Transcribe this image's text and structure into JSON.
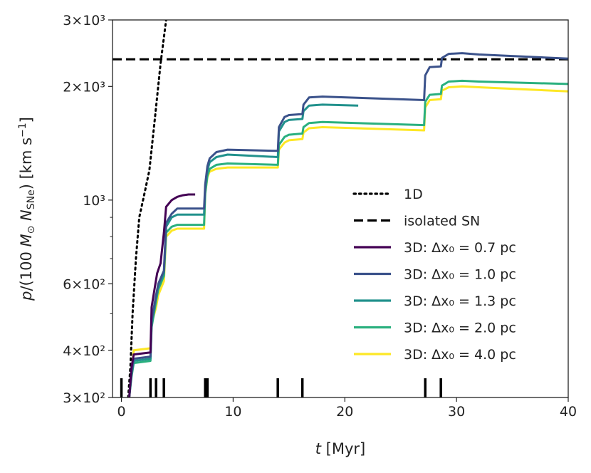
{
  "chart_data": {
    "type": "line",
    "xlabel": "t [Myr]",
    "ylabel": "p/(100 M⊙ N_SNe) [km s⁻¹]",
    "xlim": [
      -0.8,
      40
    ],
    "ylim": [
      300,
      3000
    ],
    "yscale": "log",
    "xticks": [
      0,
      10,
      20,
      30,
      40
    ],
    "xtick_labels": [
      "0",
      "10",
      "20",
      "30",
      "40"
    ],
    "yticks": [
      300,
      400,
      600,
      1000,
      2000,
      3000
    ],
    "ytick_labels": [
      "3×10²",
      "4×10²",
      "6×10²",
      "10³",
      "2×10³",
      "3×10³"
    ],
    "sn_times": [
      0.0,
      2.6,
      3.1,
      3.8,
      7.5,
      7.7,
      14.0,
      16.2,
      27.2,
      28.6
    ],
    "reference_lines": [
      {
        "name": "1D",
        "style": "dotted",
        "color": "#000000",
        "x": [
          0.6,
          0.8,
          1.0,
          1.3,
          1.6,
          2.0,
          2.5,
          3.0,
          3.5,
          4.0
        ],
        "y": [
          300,
          360,
          500,
          700,
          900,
          1020,
          1200,
          1650,
          2300,
          3000
        ]
      },
      {
        "name": "isolated SN",
        "style": "dashed",
        "color": "#000000",
        "x": [
          -0.8,
          40
        ],
        "y": [
          2360,
          2360
        ]
      }
    ],
    "series": [
      {
        "name": "0.7 pc",
        "label": "3D: Δx₀ = 0.7 pc",
        "color": "#440154",
        "x": [
          0.7,
          0.9,
          1.1,
          2.6,
          2.7,
          3.0,
          3.2,
          3.5,
          3.8,
          4.0,
          4.5,
          5.0,
          5.5,
          6.0,
          6.6
        ],
        "y": [
          300,
          360,
          390,
          395,
          520,
          590,
          640,
          680,
          820,
          960,
          1000,
          1020,
          1030,
          1035,
          1035
        ]
      },
      {
        "name": "1.0 pc",
        "label": "3D: Δx₀ = 1.0 pc",
        "color": "#3b528b",
        "x": [
          0.7,
          0.9,
          1.1,
          2.6,
          2.7,
          3.1,
          3.3,
          3.8,
          4.0,
          4.5,
          5.0,
          7.4,
          7.5,
          7.7,
          7.9,
          8.5,
          9.5,
          14.0,
          14.1,
          14.6,
          15.0,
          16.2,
          16.3,
          16.8,
          18.0,
          27.1,
          27.2,
          27.6,
          28.6,
          28.7,
          29.3,
          30.5,
          32.0,
          40.0
        ],
        "y": [
          300,
          350,
          380,
          385,
          480,
          560,
          600,
          650,
          870,
          920,
          950,
          950,
          1100,
          1230,
          1290,
          1340,
          1360,
          1350,
          1560,
          1660,
          1680,
          1690,
          1790,
          1870,
          1880,
          1840,
          2140,
          2250,
          2260,
          2380,
          2440,
          2450,
          2430,
          2370
        ]
      },
      {
        "name": "1.3 pc",
        "label": "3D: Δx₀ = 1.3 pc",
        "color": "#21918c",
        "x": [
          0.7,
          0.9,
          1.1,
          2.6,
          2.7,
          3.1,
          3.3,
          3.8,
          4.0,
          4.5,
          5.0,
          7.4,
          7.5,
          7.7,
          7.9,
          8.5,
          9.5,
          14.0,
          14.1,
          14.6,
          15.0,
          16.2,
          16.3,
          16.8,
          18.0,
          21.2
        ],
        "y": [
          300,
          345,
          375,
          380,
          470,
          550,
          590,
          640,
          850,
          900,
          915,
          915,
          1080,
          1200,
          1260,
          1300,
          1320,
          1300,
          1520,
          1610,
          1630,
          1640,
          1720,
          1780,
          1790,
          1780
        ]
      },
      {
        "name": "2.0 pc",
        "label": "3D: Δx₀ = 2.0 pc",
        "color": "#2ab07f",
        "x": [
          0.7,
          0.9,
          1.1,
          2.6,
          2.7,
          3.1,
          3.3,
          3.8,
          4.0,
          4.5,
          5.0,
          7.4,
          7.5,
          7.7,
          7.9,
          8.5,
          9.5,
          14.0,
          14.1,
          14.6,
          15.0,
          16.2,
          16.3,
          16.8,
          18.0,
          27.1,
          27.2,
          27.6,
          28.6,
          28.7,
          29.3,
          30.5,
          32.0,
          40.0
        ],
        "y": [
          300,
          340,
          370,
          375,
          460,
          540,
          580,
          630,
          820,
          850,
          860,
          860,
          1040,
          1160,
          1210,
          1240,
          1250,
          1240,
          1400,
          1470,
          1490,
          1500,
          1560,
          1600,
          1610,
          1580,
          1820,
          1900,
          1910,
          2010,
          2060,
          2070,
          2060,
          2030
        ]
      },
      {
        "name": "4.0 pc",
        "label": "3D: Δx₀ = 4.0 pc",
        "color": "#fde725",
        "x": [
          0.7,
          0.9,
          1.1,
          2.6,
          2.7,
          3.1,
          3.3,
          3.8,
          4.0,
          4.5,
          5.0,
          7.4,
          7.5,
          7.7,
          7.9,
          8.5,
          9.5,
          14.0,
          14.1,
          14.6,
          15.0,
          16.2,
          16.3,
          16.8,
          18.0,
          27.1,
          27.2,
          27.6,
          28.6,
          28.7,
          29.3,
          30.5,
          32.0,
          40.0
        ],
        "y": [
          300,
          350,
          400,
          405,
          470,
          520,
          560,
          610,
          800,
          830,
          840,
          840,
          1040,
          1150,
          1190,
          1210,
          1220,
          1220,
          1360,
          1420,
          1440,
          1450,
          1510,
          1550,
          1560,
          1530,
          1760,
          1840,
          1850,
          1950,
          1990,
          2000,
          1990,
          1940
        ]
      }
    ]
  }
}
